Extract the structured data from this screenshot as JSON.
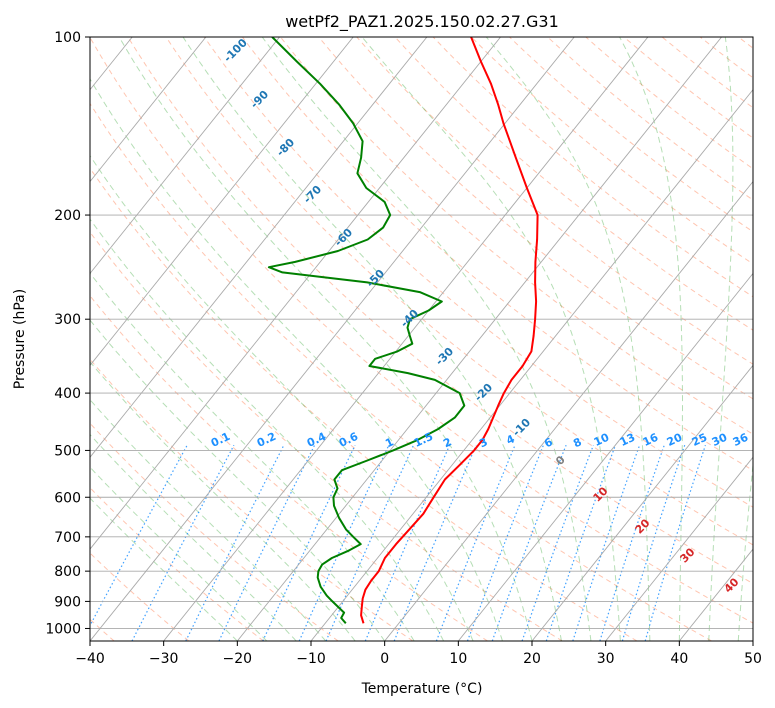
{
  "chart_data": {
    "type": "line",
    "subtype": "skew-t log-p diagram",
    "title": "wetPf2_PAZ1.2025.150.02.27.G31",
    "xlabel": "Temperature (°C)",
    "ylabel": "Pressure (hPa)",
    "xlim": [
      -40,
      50
    ],
    "ylim": [
      1050,
      100
    ],
    "y_scale": "log",
    "x_ticks": [
      -40,
      -30,
      -20,
      -10,
      0,
      10,
      20,
      30,
      40,
      50
    ],
    "y_ticks": [
      1000,
      900,
      800,
      700,
      600,
      500,
      400,
      300,
      200,
      100
    ],
    "grid": true,
    "series": [
      {
        "role": "temperature",
        "color": "#ff0000",
        "p": [
          980,
          950,
          920,
          890,
          860,
          830,
          800,
          760,
          720,
          680,
          640,
          600,
          560,
          530,
          500,
          480,
          460,
          440,
          420,
          400,
          380,
          360,
          340,
          320,
          300,
          280,
          260,
          240,
          220,
          200,
          180,
          160,
          150,
          140,
          130,
          120,
          110,
          100
        ],
        "t": [
          -4.8,
          -6.0,
          -6.8,
          -7.6,
          -8.2,
          -8.4,
          -8.4,
          -9.0,
          -9.0,
          -8.8,
          -8.6,
          -9.0,
          -9.4,
          -9.0,
          -8.6,
          -8.6,
          -9.0,
          -9.6,
          -10.2,
          -10.8,
          -11.2,
          -11.2,
          -11.6,
          -13.0,
          -14.6,
          -16.4,
          -18.6,
          -20.8,
          -23.0,
          -25.6,
          -30.0,
          -34.8,
          -37.4,
          -40.2,
          -43.0,
          -46.2,
          -50.0,
          -54.0
        ]
      },
      {
        "role": "dewpoint",
        "color": "#008000",
        "p": [
          980,
          960,
          940,
          920,
          900,
          880,
          850,
          820,
          800,
          780,
          760,
          740,
          720,
          700,
          680,
          650,
          620,
          600,
          580,
          560,
          540,
          520,
          500,
          480,
          460,
          440,
          420,
          400,
          380,
          370,
          360,
          350,
          340,
          330,
          320,
          310,
          300,
          290,
          280,
          270,
          260,
          250,
          245,
          240,
          230,
          220,
          210,
          200,
          190,
          180,
          170,
          160,
          150,
          140,
          130,
          120,
          110,
          100
        ],
        "t": [
          -7.2,
          -8.4,
          -8.6,
          -10.0,
          -11.4,
          -12.8,
          -14.6,
          -16.0,
          -16.6,
          -16.8,
          -16.2,
          -14.8,
          -13.8,
          -15.6,
          -17.4,
          -19.6,
          -21.6,
          -22.6,
          -23.0,
          -24.4,
          -24.4,
          -22.0,
          -19.6,
          -17.4,
          -15.8,
          -14.8,
          -14.8,
          -16.8,
          -21.6,
          -26.0,
          -32.0,
          -32.0,
          -29.8,
          -28.6,
          -29.8,
          -31.0,
          -31.6,
          -30.0,
          -29.2,
          -33.2,
          -41.4,
          -54.0,
          -56.4,
          -53.4,
          -48.8,
          -46.0,
          -45.2,
          -45.6,
          -47.8,
          -51.8,
          -54.6,
          -55.8,
          -57.4,
          -60.6,
          -64.6,
          -69.4,
          -75.0,
          -81.0
        ]
      }
    ],
    "dry_adiabat_labels": [
      "-100",
      "-90",
      "-80",
      "-70",
      "-60",
      "-50",
      "-40",
      "-30",
      "-20",
      "-10",
      "0",
      "10",
      "20",
      "30",
      "40"
    ],
    "mixing_ratio_labels": [
      "0.1",
      "0.2",
      "0.4",
      "0.6",
      "1",
      "1.5",
      "2",
      "3",
      "4",
      "6",
      "8",
      "10",
      "13",
      "16",
      "20",
      "25",
      "30",
      "36"
    ],
    "colors": {
      "isotherm": "#aaaaaa",
      "isobar": "#aaaaaa",
      "dry_adiabat": "#ff7f50",
      "moist_adiabat": "#2ca02c",
      "mixing_ratio": "#1f77b4",
      "cold_label": "#1f77b4",
      "zero_label": "#808080",
      "warm_label": "#d62728",
      "mixing_label": "#1e90ff"
    }
  }
}
